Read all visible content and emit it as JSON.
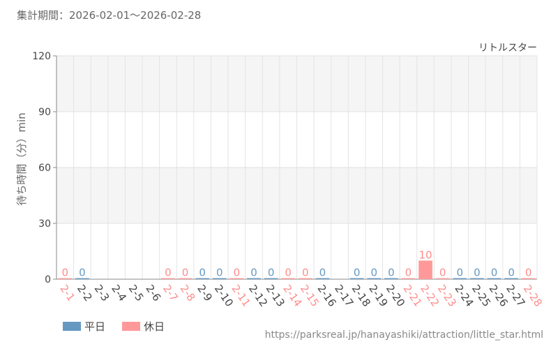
{
  "period_text": "集計期間：2026-02-01〜2026-02-28",
  "source_url": "https://parksreal.jp/hanayashiki/attraction/little_star.html",
  "colors": {
    "weekday": "#6699c2",
    "holiday": "#ff9999",
    "weekday_label": "#6699c2",
    "holiday_label": "#ff8c8c",
    "tick_weekday": "#444444",
    "tick_holiday": "#ff8c8c"
  },
  "chart_data": {
    "type": "bar",
    "title": "リトルスター",
    "ylabel": "待ち時間（分）min",
    "xlabel": "",
    "ylim": [
      0,
      120
    ],
    "yticks": [
      0,
      30,
      60,
      90,
      120
    ],
    "grid": true,
    "legend_position": "bottom-left",
    "categories": [
      "2-1",
      "2-2",
      "2-3",
      "2-4",
      "2-5",
      "2-6",
      "2-7",
      "2-8",
      "2-9",
      "2-10",
      "2-11",
      "2-12",
      "2-13",
      "2-14",
      "2-15",
      "2-16",
      "2-17",
      "2-18",
      "2-19",
      "2-20",
      "2-21",
      "2-22",
      "2-23",
      "2-24",
      "2-25",
      "2-26",
      "2-27",
      "2-28"
    ],
    "day_type": [
      "holiday",
      "weekday",
      "weekday",
      "weekday",
      "weekday",
      "weekday",
      "holiday",
      "holiday",
      "weekday",
      "weekday",
      "holiday",
      "weekday",
      "weekday",
      "holiday",
      "holiday",
      "weekday",
      "weekday",
      "weekday",
      "weekday",
      "weekday",
      "holiday",
      "holiday",
      "holiday",
      "weekday",
      "weekday",
      "weekday",
      "weekday",
      "holiday"
    ],
    "values": [
      0,
      0,
      null,
      null,
      null,
      null,
      0,
      0,
      0,
      0,
      0,
      0,
      0,
      0,
      0,
      0,
      null,
      0,
      0,
      0,
      0,
      10,
      0,
      0,
      0,
      0,
      0,
      0
    ],
    "series": [
      {
        "name": "平日",
        "key": "weekday"
      },
      {
        "name": "休日",
        "key": "holiday"
      }
    ]
  }
}
